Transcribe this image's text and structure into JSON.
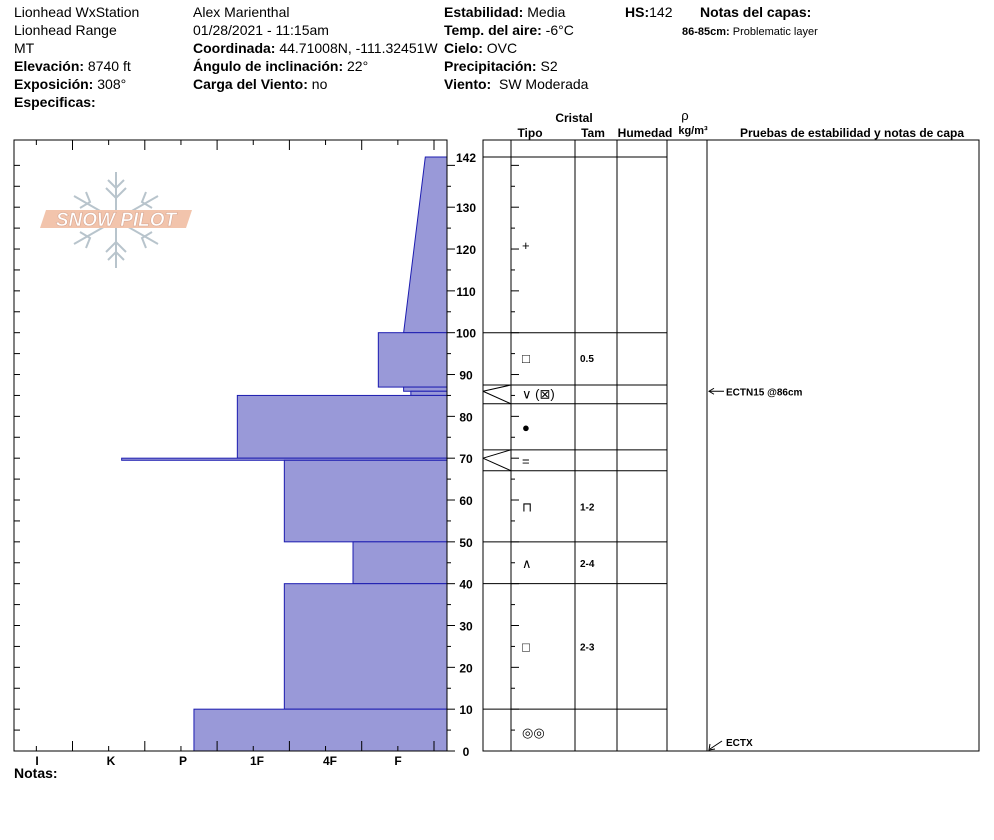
{
  "header": {
    "station": "Lionhead WxStation",
    "range": "Lionhead Range",
    "state": "MT",
    "elevation_label": "Elevación:",
    "elevation_value": "8740 ft",
    "aspect_label": "Exposición:",
    "aspect_value": "308°",
    "specifics_label": "Especificas:",
    "observer": "Alex Marienthal",
    "datetime": "01/28/2021 - 11:15am",
    "coord_label": "Coordinada:",
    "coord_value": "44.71008N, -111.32451W",
    "slope_label": "Ángulo de inclinación:",
    "slope_value": "22°",
    "wind_loading_label": "Carga del Viento:",
    "wind_loading_value": "no",
    "stability_label": "Estabilidad:",
    "stability_value": "Media",
    "air_temp_label": "Temp. del aire:",
    "air_temp_value": "-6°C",
    "sky_label": "Cielo:",
    "sky_value": "OVC",
    "precip_label": "Precipitación:",
    "precip_value": "S2",
    "wind_label": "Viento:",
    "wind_value": "SW Moderada",
    "hs_label": "HS:",
    "hs_value": "142",
    "layer_notes_label": "Notas del capas:",
    "layer_note_depth": "86-85cm:",
    "layer_note_text": "Problematic layer"
  },
  "logo_text": "SNOW PILOT",
  "notes_label": "Notas:",
  "table_headers": {
    "crystal": "Cristal",
    "type": "Tipo",
    "size": "Tam",
    "moisture": "Humedad",
    "rho": "ρ",
    "density_unit": "kg/m³",
    "tests": "Pruebas de estabilidad y notas de capa"
  },
  "colors": {
    "profile_fill": "#9999d8",
    "profile_edge": "#1c1cb0"
  },
  "chart_data": {
    "type": "snow-profile",
    "hardness_categories": [
      "I",
      "K",
      "P",
      "1F",
      "4F",
      "F"
    ],
    "depth_ticks": [
      142,
      130,
      120,
      110,
      100,
      90,
      80,
      70,
      60,
      50,
      40,
      30,
      20,
      10,
      0
    ],
    "ylim": [
      0,
      142
    ],
    "hardness_scale_note": "0 = right edge (no hardness), 6 = left edge",
    "hardness_profile": [
      {
        "top": 142,
        "bottom": 100,
        "hardness_top": 0.3,
        "hardness_bottom": 0.6
      },
      {
        "top": 100,
        "bottom": 87,
        "hardness": 0.95
      },
      {
        "top": 87,
        "bottom": 86,
        "hardness": 0.6
      },
      {
        "top": 86,
        "bottom": 85,
        "hardness": 0.5
      },
      {
        "top": 85,
        "bottom": 70,
        "hardness": 2.9
      },
      {
        "top": 70,
        "bottom": 69.5,
        "hardness": 4.5
      },
      {
        "top": 69.5,
        "bottom": 50,
        "hardness": 2.25
      },
      {
        "top": 50,
        "bottom": 40,
        "hardness": 1.3
      },
      {
        "top": 40,
        "bottom": 10,
        "hardness": 2.25
      },
      {
        "top": 10,
        "bottom": 0,
        "hardness": 3.5
      }
    ],
    "layer_boundaries": [
      100,
      87.5,
      83,
      72,
      67,
      50,
      40,
      10
    ],
    "layers": [
      {
        "depth": 121,
        "type": "+",
        "size": ""
      },
      {
        "depth": 94,
        "type": "□",
        "size": "0.5"
      },
      {
        "depth": 85.5,
        "type": "∨ (⊠)",
        "size": ""
      },
      {
        "depth": 77.5,
        "type": "●",
        "size": ""
      },
      {
        "depth": 69.5,
        "type": "=",
        "size": ""
      },
      {
        "depth": 58.5,
        "type": "⊓",
        "size": "1-2"
      },
      {
        "depth": 45,
        "type": "∧",
        "size": "2-4"
      },
      {
        "depth": 25,
        "type": "□",
        "size": "2-3"
      },
      {
        "depth": 4.5,
        "type": "◎◎",
        "size": ""
      }
    ],
    "stability_tests": [
      {
        "depth": 86,
        "label": "ECTN15 @86cm"
      },
      {
        "depth": 0,
        "label": "ECTX"
      }
    ],
    "layer_notes": [
      {
        "top": 86,
        "bottom": 85,
        "note": "Problematic layer"
      }
    ]
  }
}
